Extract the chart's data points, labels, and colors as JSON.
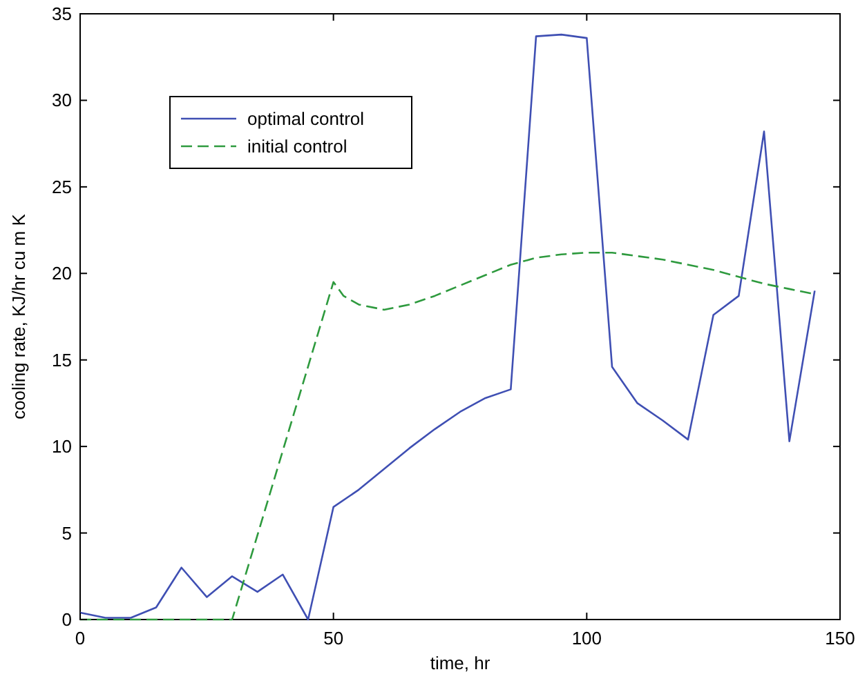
{
  "chart_data": {
    "type": "line",
    "xlabel": "time, hr",
    "ylabel": "cooling rate, KJ/hr cu m K",
    "xlim": [
      0,
      150
    ],
    "ylim": [
      0,
      35
    ],
    "xticks": [
      0,
      50,
      100,
      150
    ],
    "yticks": [
      0,
      5,
      10,
      15,
      20,
      25,
      30,
      35
    ],
    "grid": false,
    "legend": "top left",
    "series": [
      {
        "name": "optimal control",
        "color": "#3f4fb3",
        "line_style": "solid",
        "x": [
          0,
          5,
          10,
          15,
          20,
          25,
          30,
          35,
          40,
          45,
          50,
          55,
          60,
          65,
          70,
          75,
          80,
          85,
          90,
          95,
          100,
          105,
          110,
          115,
          120,
          125,
          130,
          135,
          140,
          145
        ],
        "values": [
          0.4,
          0.1,
          0.1,
          0.7,
          3,
          1.3,
          2.5,
          1.6,
          2.6,
          0,
          6.5,
          7.5,
          8.7,
          9.9,
          11,
          12,
          12.8,
          13.3,
          33.7,
          33.8,
          33.6,
          14.6,
          12.5,
          11.5,
          10.4,
          17.6,
          18.7,
          28.2,
          10.3,
          19
        ]
      },
      {
        "name": "initial control",
        "color": "#2e9a3e",
        "line_style": "dashed",
        "x": [
          0,
          10,
          20,
          30,
          50,
          52,
          55,
          60,
          65,
          70,
          75,
          80,
          85,
          90,
          95,
          100,
          105,
          110,
          115,
          120,
          125,
          130,
          135,
          140,
          145
        ],
        "values": [
          0,
          0,
          0,
          0,
          19.5,
          18.7,
          18.2,
          17.9,
          18.2,
          18.7,
          19.3,
          19.9,
          20.5,
          20.9,
          21.1,
          21.2,
          21.2,
          21,
          20.8,
          20.5,
          20.2,
          19.8,
          19.4,
          19.1,
          18.8
        ]
      }
    ]
  }
}
